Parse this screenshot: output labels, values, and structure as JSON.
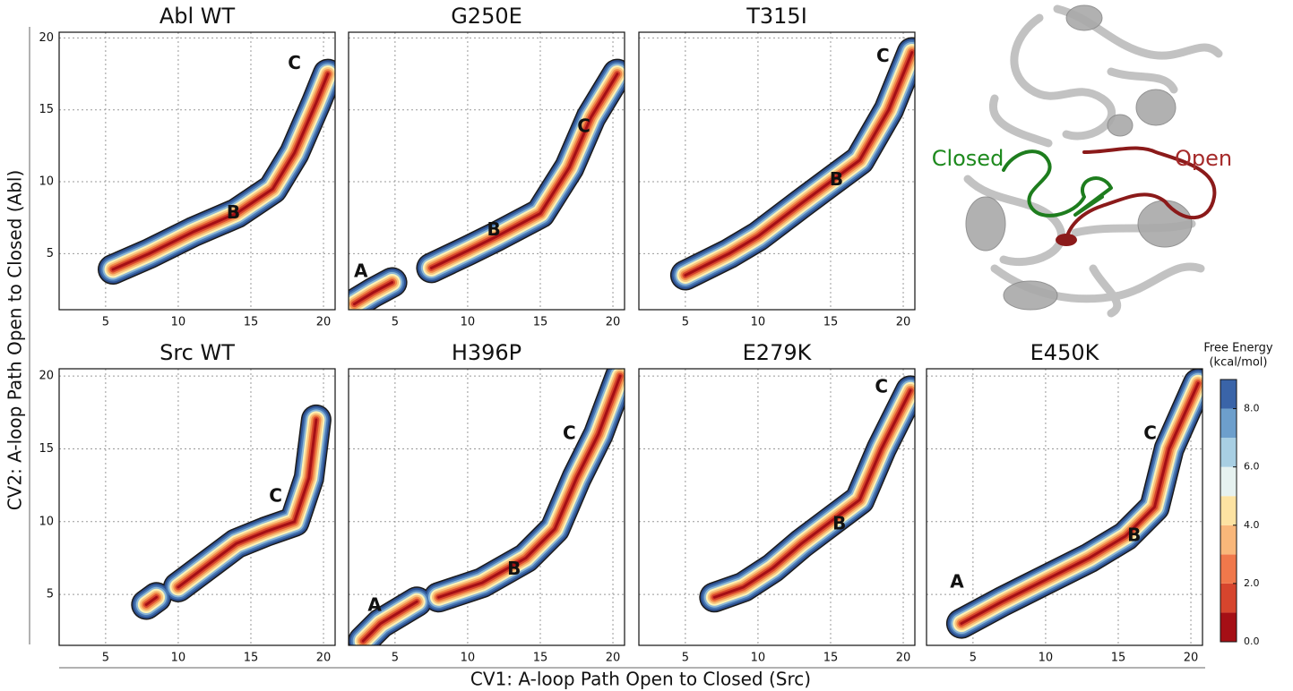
{
  "figure": {
    "xlabel": "CV1: A-loop Path Open to Closed (Src)",
    "ylabel": "CV2: A-loop Path Open to Closed (Abl)",
    "colorbar": {
      "title": [
        "Free Energy",
        "(kcal/mol)"
      ],
      "lim": [
        0,
        9
      ],
      "colors": [
        "#a50f15",
        "#d6452d",
        "#f0784b",
        "#f9b77a",
        "#fde3a2",
        "#e6f2f0",
        "#a8cfe3",
        "#6d9fcc",
        "#3a64a8"
      ],
      "ticks": [
        {
          "value": 0,
          "label": "0.0"
        },
        {
          "value": 2,
          "label": "2.0"
        },
        {
          "value": 4,
          "label": "4.0"
        },
        {
          "value": 6,
          "label": "6.0"
        },
        {
          "value": 8,
          "label": "8.0"
        }
      ]
    },
    "structure": {
      "closed_label": "Closed",
      "open_label": "Open"
    }
  },
  "chart_data": [
    {
      "type": "contour",
      "title": "Abl WT",
      "xlim": [
        1.8,
        20.8
      ],
      "ylim": [
        1.1,
        20.4
      ],
      "xticks": [
        5,
        10,
        15,
        20
      ],
      "yticks": [
        5,
        10,
        15,
        20
      ],
      "grid": true,
      "show_ytick_labels": true,
      "x": [
        5.5,
        8,
        11,
        14,
        16.5,
        18,
        19.5,
        20.3
      ],
      "y": [
        3.9,
        5,
        6.5,
        7.8,
        9.5,
        12,
        15.5,
        17.5
      ],
      "annotations": [
        {
          "label": "C",
          "x": 18,
          "y": 18.2
        },
        {
          "label": "B",
          "x": 13.8,
          "y": 7.8
        }
      ]
    },
    {
      "type": "contour",
      "title": "G250E",
      "xlim": [
        1.8,
        20.8
      ],
      "ylim": [
        1.1,
        20.4
      ],
      "xticks": [
        5,
        10,
        15,
        20
      ],
      "yticks": [
        5,
        10,
        15,
        20
      ],
      "grid": true,
      "show_ytick_labels": false,
      "x": [
        2.2,
        3.5,
        4.8,
        null,
        7.5,
        10,
        12,
        15,
        17,
        18.5,
        20.3
      ],
      "y": [
        1.5,
        2.3,
        3,
        null,
        4,
        5.2,
        6.2,
        7.8,
        11,
        14.5,
        17.5
      ],
      "annotations": [
        {
          "label": "A",
          "x": 2.65,
          "y": 3.7
        },
        {
          "label": "C",
          "x": 18,
          "y": 13.8
        },
        {
          "label": "B",
          "x": 11.8,
          "y": 6.6
        }
      ]
    },
    {
      "type": "contour",
      "title": "T315I",
      "xlim": [
        1.8,
        20.8
      ],
      "ylim": [
        1.1,
        20.4
      ],
      "xticks": [
        5,
        10,
        15,
        20
      ],
      "yticks": [
        5,
        10,
        15,
        20
      ],
      "grid": true,
      "show_ytick_labels": false,
      "x": [
        5,
        8,
        10,
        13,
        15,
        17,
        19,
        20.6
      ],
      "y": [
        3.5,
        5,
        6.2,
        8.5,
        10,
        11.5,
        15,
        19
      ],
      "annotations": [
        {
          "label": "C",
          "x": 18.6,
          "y": 18.7
        },
        {
          "label": "B",
          "x": 15.4,
          "y": 10.1
        }
      ]
    },
    {
      "type": "contour",
      "title": "Src WT",
      "xlim": [
        1.8,
        20.8
      ],
      "ylim": [
        1.5,
        20.5
      ],
      "xticks": [
        5,
        10,
        15,
        20
      ],
      "yticks": [
        5,
        10,
        15,
        20
      ],
      "grid": true,
      "show_ytick_labels": true,
      "x": [
        7.8,
        8.5,
        null,
        10,
        12,
        14,
        16,
        18,
        19,
        19.5
      ],
      "y": [
        4.3,
        4.8,
        null,
        5.5,
        7,
        8.5,
        9.3,
        10,
        13,
        17
      ],
      "annotations": [
        {
          "label": "C",
          "x": 16.7,
          "y": 11.7
        }
      ]
    },
    {
      "type": "contour",
      "title": "H396P",
      "xlim": [
        1.8,
        20.8
      ],
      "ylim": [
        1.5,
        20.5
      ],
      "xticks": [
        5,
        10,
        15,
        20
      ],
      "yticks": [
        5,
        10,
        15,
        20
      ],
      "grid": true,
      "show_ytick_labels": false,
      "x": [
        2.8,
        4,
        6.5,
        null,
        8,
        11,
        14,
        16,
        17.5,
        19,
        20.5
      ],
      "y": [
        1.8,
        3,
        4.5,
        null,
        4.8,
        5.8,
        7.5,
        9.5,
        13,
        16,
        20
      ],
      "annotations": [
        {
          "label": "A",
          "x": 3.6,
          "y": 4.2
        },
        {
          "label": "C",
          "x": 17,
          "y": 16
        },
        {
          "label": "B",
          "x": 13.2,
          "y": 6.7
        }
      ]
    },
    {
      "type": "contour",
      "title": "E279K",
      "xlim": [
        1.8,
        20.8
      ],
      "ylim": [
        1.5,
        20.5
      ],
      "xticks": [
        5,
        10,
        15,
        20
      ],
      "yticks": [
        5,
        10,
        15,
        20
      ],
      "grid": true,
      "show_ytick_labels": false,
      "x": [
        7,
        9,
        11,
        13,
        15,
        17,
        18.5,
        20.5
      ],
      "y": [
        4.8,
        5.5,
        6.8,
        8.5,
        10,
        11.5,
        15,
        19
      ],
      "annotations": [
        {
          "label": "C",
          "x": 18.5,
          "y": 19.2
        },
        {
          "label": "B",
          "x": 15.6,
          "y": 9.8
        }
      ]
    },
    {
      "type": "contour",
      "title": "E450K",
      "xlim": [
        1.8,
        20.8
      ],
      "ylim": [
        1.5,
        20.5
      ],
      "xticks": [
        5,
        10,
        15,
        20
      ],
      "yticks": [
        5,
        10,
        15,
        20
      ],
      "grid": true,
      "show_ytick_labels": false,
      "x": [
        4.2,
        7,
        10,
        13,
        15.5,
        17.5,
        18.5,
        20.5
      ],
      "y": [
        3,
        4.5,
        6,
        7.5,
        9,
        11,
        15,
        19.5
      ],
      "annotations": [
        {
          "label": "A",
          "x": 3.9,
          "y": 5.8
        },
        {
          "label": "C",
          "x": 17.2,
          "y": 16
        },
        {
          "label": "B",
          "x": 16.1,
          "y": 9
        }
      ]
    }
  ]
}
